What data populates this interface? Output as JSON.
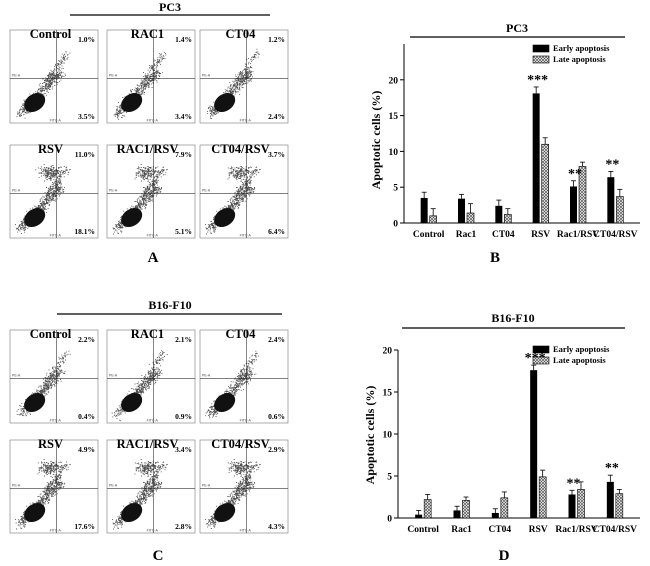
{
  "panels": {
    "A": "A",
    "B": "B",
    "C": "C",
    "D": "D"
  },
  "flow": {
    "pc3": {
      "title": "PC3",
      "plots": [
        {
          "name": "Control",
          "ul": "1.0%",
          "lr": "3.5%",
          "dense": 0
        },
        {
          "name": "RAC1",
          "ul": "1.4%",
          "lr": "3.4%",
          "dense": 0
        },
        {
          "name": "CT04",
          "ul": "1.2%",
          "lr": "2.4%",
          "dense": 0
        },
        {
          "name": "RSV",
          "ul": "11.0%",
          "lr": "18.1%",
          "dense": 1
        },
        {
          "name": "RAC1/RSV",
          "ul": "7.9%",
          "lr": "5.1%",
          "dense": 1
        },
        {
          "name": "CT04/RSV",
          "ul": "3.7%",
          "lr": "6.4%",
          "dense": 1
        }
      ]
    },
    "b16": {
      "title": "B16-F10",
      "plots": [
        {
          "name": "Control",
          "ur": "2.2%",
          "lr": "0.4%",
          "dense": 0
        },
        {
          "name": "RAC1",
          "ur": "2.1%",
          "lr": "0.9%",
          "dense": 0
        },
        {
          "name": "CT04",
          "ur": "2.4%",
          "lr": "0.6%",
          "dense": 0
        },
        {
          "name": "RSV",
          "ur": "4.9%",
          "lr": "17.6%",
          "dense": 1
        },
        {
          "name": "RAC1/RSV",
          "ur": "3.4%",
          "lr": "2.8%",
          "dense": 1
        },
        {
          "name": "CT04/RSV",
          "ur": "2.9%",
          "lr": "4.3%",
          "dense": 1
        }
      ]
    },
    "axis_y": "PE-A",
    "axis_x": "FITC-A"
  },
  "chart_data": [
    {
      "type": "bar",
      "title": "PC3",
      "ylabel": "Apoptotic cells (%)",
      "xlabel": "",
      "ylim": [
        0,
        25
      ],
      "yticks": [
        0,
        5,
        10,
        15,
        20
      ],
      "categories": [
        "Control",
        "Rac1",
        "CT04",
        "RSV",
        "Rac1/RSV",
        "CT04/RSV"
      ],
      "series": [
        {
          "name": "Early apoptosis",
          "values": [
            3.5,
            3.4,
            2.4,
            18.1,
            5.1,
            6.4
          ],
          "errors": [
            0.8,
            0.6,
            0.8,
            0.9,
            0.8,
            0.8
          ]
        },
        {
          "name": "Late apoptosis",
          "values": [
            1.0,
            1.4,
            1.2,
            11.0,
            7.9,
            3.7
          ],
          "errors": [
            1.0,
            1.3,
            0.8,
            0.9,
            0.6,
            1.0
          ]
        }
      ],
      "significance": [
        "",
        "",
        "",
        "***",
        "**",
        "**"
      ]
    },
    {
      "type": "bar",
      "title": "B16-F10",
      "ylabel": "Apoptotic cells (%)",
      "xlabel": "",
      "ylim": [
        0,
        20
      ],
      "yticks": [
        0,
        5,
        10,
        15,
        20
      ],
      "categories": [
        "Control",
        "Rac1",
        "CT04",
        "RSV",
        "Rac1/RSV",
        "CT04/RSV"
      ],
      "series": [
        {
          "name": "Early apoptosis",
          "values": [
            0.4,
            0.9,
            0.6,
            17.6,
            2.8,
            4.3
          ],
          "errors": [
            0.5,
            0.5,
            0.5,
            0.6,
            0.5,
            0.8
          ]
        },
        {
          "name": "Late apoptosis",
          "values": [
            2.2,
            2.1,
            2.4,
            4.9,
            3.4,
            2.9
          ],
          "errors": [
            0.6,
            0.4,
            0.7,
            0.8,
            0.9,
            0.5
          ]
        }
      ],
      "significance": [
        "",
        "",
        "",
        "***",
        "**",
        "**"
      ]
    }
  ]
}
